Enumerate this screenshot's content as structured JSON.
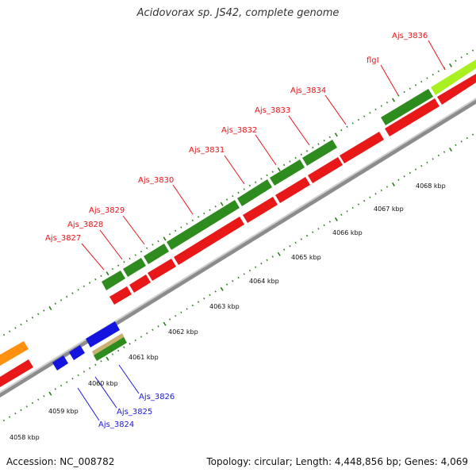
{
  "title": "Acidovorax sp. JS42, complete genome",
  "footer": {
    "accession": "Accession: NC_008782",
    "summary": "Topology: circular; Length: 4,448,856 bp; Genes: 4,069"
  },
  "ruler_labels": [
    "4058 kbp",
    "4059 kbp",
    "4060 kbp",
    "4061 kbp",
    "4062 kbp",
    "4063 kbp",
    "4064 kbp",
    "4065 kbp",
    "4066 kbp",
    "4067 kbp",
    "4068 kbp"
  ],
  "forward_labels": [
    "Ajs_3827",
    "Ajs_3828",
    "Ajs_3829",
    "Ajs_3830",
    "Ajs_3831",
    "Ajs_3832",
    "Ajs_3833",
    "Ajs_3834",
    "flgI",
    "Ajs_3836"
  ],
  "reverse_labels": [
    "Ajs_3824",
    "Ajs_3825",
    "Ajs_3826"
  ],
  "colors": {
    "red_label": "#e8141a",
    "blue_label": "#1a1ad6",
    "cds_red": "#e81818",
    "gene_green": "#2e8b1e",
    "gene_blue": "#1414e0",
    "gene_orange": "#ff9010",
    "gene_lime": "#a8f020",
    "gene_tan": "#c8b070",
    "backbone": "#a0a0a0",
    "tick_green": "#2a7a1a"
  }
}
